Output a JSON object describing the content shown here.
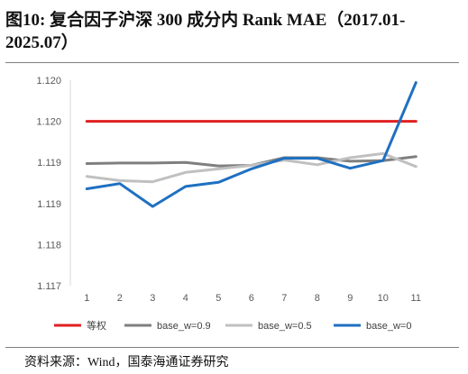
{
  "title": "图10:  复合因子沪深 300 成分内 Rank MAE（2017.01-2025.07）",
  "source": "资料来源：Wind，国泰海通证券研究",
  "colors": {
    "等权": "#e02020",
    "base_w=0.9": "#7f7f7f",
    "base_w=0.5": "#c0c0c0",
    "base_w=0": "#1f70c1"
  },
  "chart_data": {
    "type": "line",
    "title": "复合因子沪深 300 成分内 Rank MAE（2017.01-2025.07）",
    "xlabel": "",
    "ylabel": "",
    "categories": [
      "1",
      "2",
      "3",
      "4",
      "5",
      "6",
      "7",
      "8",
      "9",
      "10",
      "11"
    ],
    "yticks": [
      "1.117",
      "1.118",
      "1.119",
      "1.119",
      "1.120",
      "1.120"
    ],
    "ylim": [
      1.117,
      1.1205
    ],
    "grid": false,
    "legend": "bottom",
    "series": [
      {
        "name": "等权",
        "values": [
          1.1198,
          1.1198,
          1.1198,
          1.1198,
          1.1198,
          1.1198,
          1.1198,
          1.1198,
          1.1198,
          1.1198,
          1.1198
        ]
      },
      {
        "name": "base_w=0.9",
        "values": [
          1.11908,
          1.11909,
          1.11909,
          1.1191,
          1.11904,
          1.11905,
          1.11918,
          1.11918,
          1.11912,
          1.11913,
          1.1192
        ]
      },
      {
        "name": "base_w=0.5",
        "values": [
          1.11886,
          1.11879,
          1.11877,
          1.11893,
          1.11899,
          1.11905,
          1.11914,
          1.11906,
          1.11918,
          1.11925,
          1.11903
        ]
      },
      {
        "name": "base_w=0",
        "values": [
          1.11865,
          1.11874,
          1.11835,
          1.11869,
          1.11876,
          1.11899,
          1.11917,
          1.11917,
          1.119,
          1.11913,
          1.12046
        ]
      }
    ]
  }
}
